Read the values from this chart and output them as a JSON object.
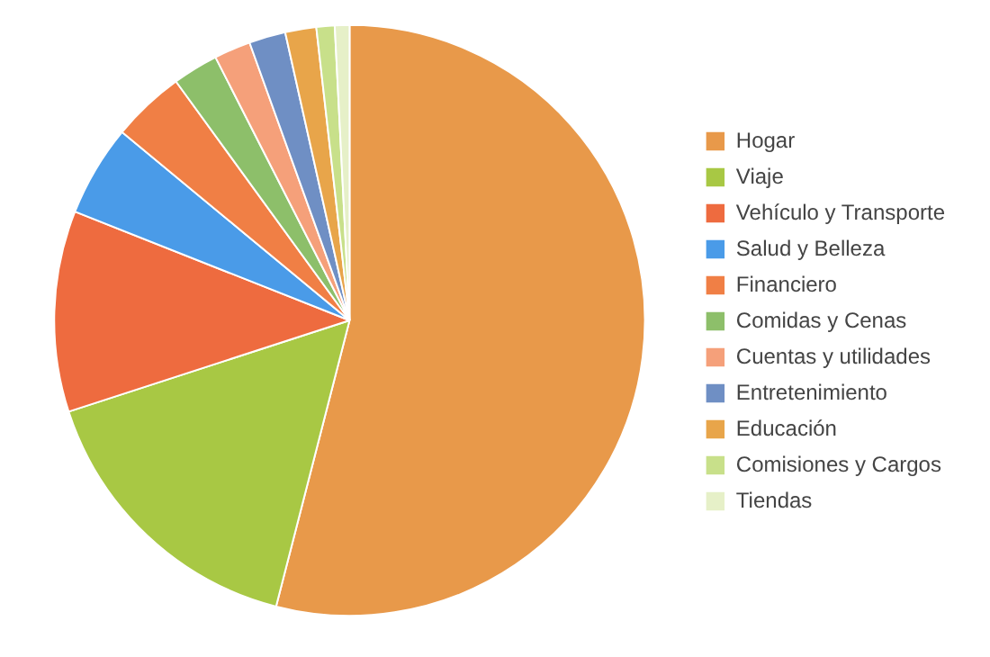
{
  "chart_data": {
    "type": "pie",
    "categories": [
      "Hogar",
      "Viaje",
      "Vehículo y Transporte",
      "Salud y Belleza",
      "Financiero",
      "Comidas y Cenas",
      "Cuentas y utilidades",
      "Entretenimiento",
      "Educación",
      "Comisiones y Cargos",
      "Tiendas"
    ],
    "values": [
      54,
      16,
      11,
      5,
      4,
      2.5,
      2,
      2,
      1.7,
      1,
      0.8
    ],
    "colors": [
      "#e8994a",
      "#a8c844",
      "#ee6b3f",
      "#4a9be8",
      "#f07f45",
      "#8dbf6a",
      "#f5a07a",
      "#6f8fc4",
      "#e8a54a",
      "#c8e08a",
      "#e6f0c8"
    ],
    "legend": "right"
  }
}
